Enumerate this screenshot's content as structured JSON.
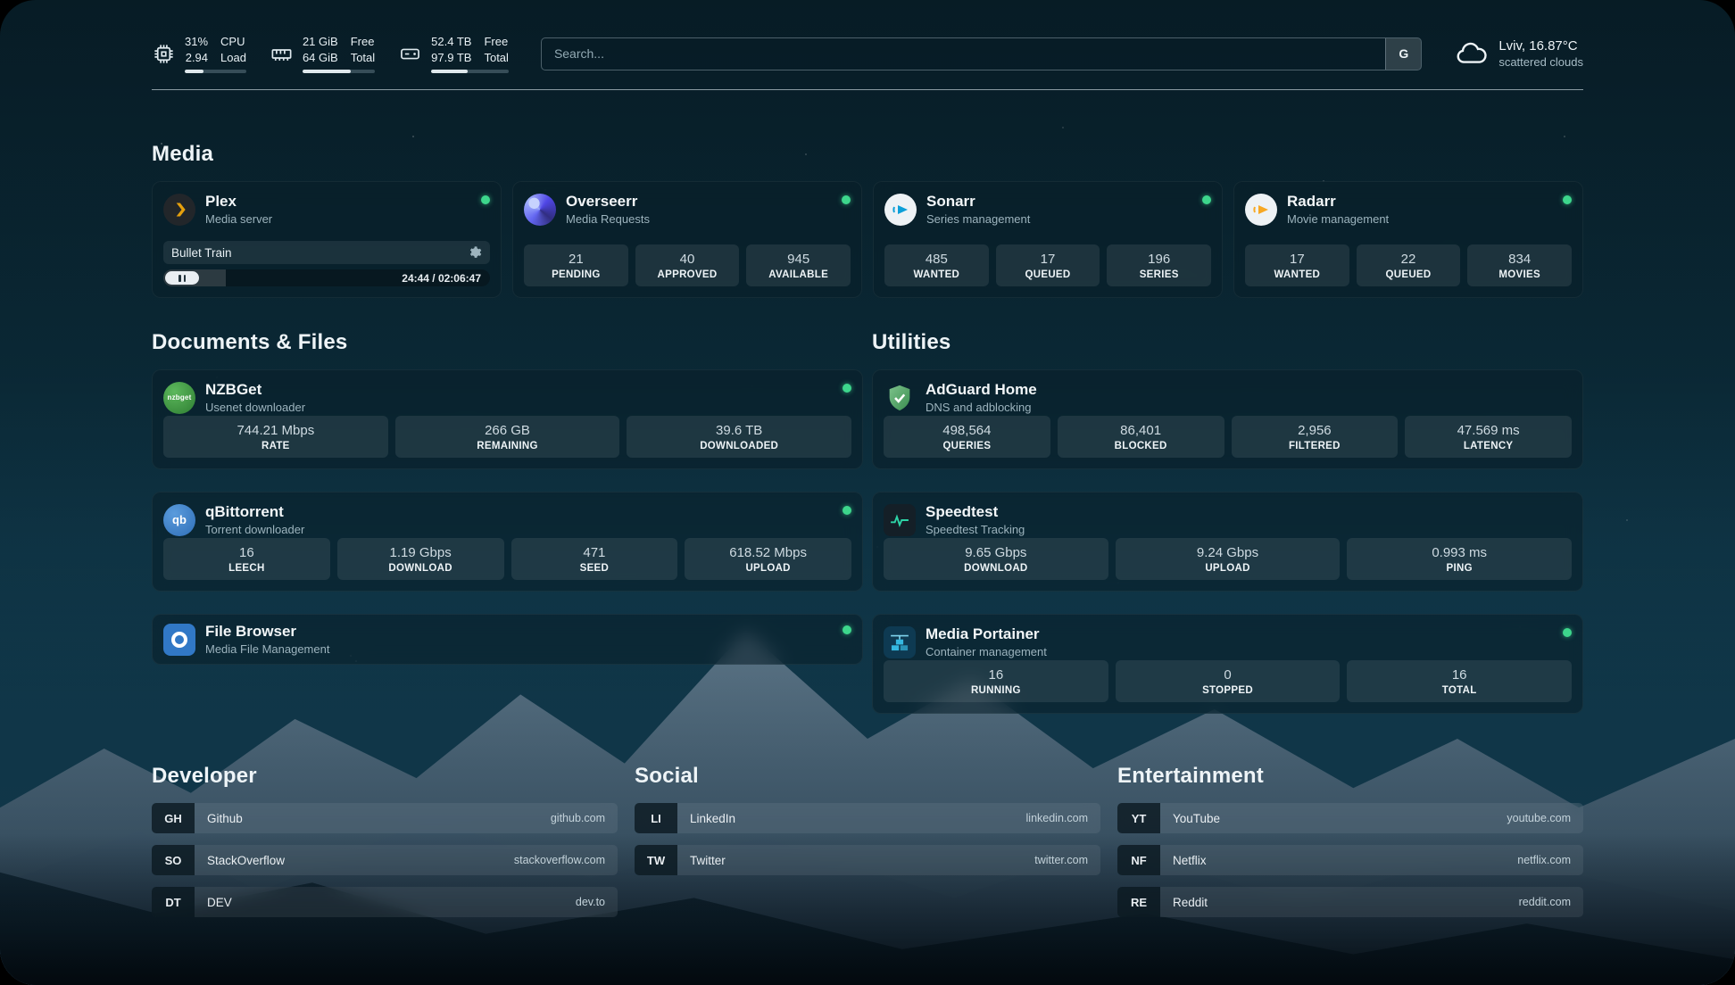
{
  "header": {
    "cpu": {
      "stat1": "31%",
      "stat2": "2.94",
      "label1": "CPU",
      "label2": "Load",
      "percent": 31
    },
    "memory": {
      "stat1": "21 GiB",
      "stat2": "64 GiB",
      "label1": "Free",
      "label2": "Total",
      "percent": 67
    },
    "disk": {
      "stat1": "52.4 TB",
      "stat2": "97.9 TB",
      "label1": "Free",
      "label2": "Total",
      "percent": 47
    },
    "search": {
      "placeholder": "Search...",
      "engine_button": "G"
    },
    "weather": {
      "location": "Lviv, 16.87°C",
      "condition": "scattered clouds"
    }
  },
  "sections": {
    "media": "Media",
    "documents": "Documents & Files",
    "utilities": "Utilities",
    "developer": "Developer",
    "social": "Social",
    "entertainment": "Entertainment"
  },
  "services": {
    "plex": {
      "name": "Plex",
      "description": "Media server",
      "now_playing": "Bullet Train",
      "time": "24:44 / 02:06:47",
      "progress_percent": 19
    },
    "overseerr": {
      "name": "Overseerr",
      "description": "Media Requests",
      "stats": [
        {
          "value": "21",
          "label": "PENDING"
        },
        {
          "value": "40",
          "label": "APPROVED"
        },
        {
          "value": "945",
          "label": "AVAILABLE"
        }
      ]
    },
    "sonarr": {
      "name": "Sonarr",
      "description": "Series management",
      "stats": [
        {
          "value": "485",
          "label": "WANTED"
        },
        {
          "value": "17",
          "label": "QUEUED"
        },
        {
          "value": "196",
          "label": "SERIES"
        }
      ]
    },
    "radarr": {
      "name": "Radarr",
      "description": "Movie management",
      "stats": [
        {
          "value": "17",
          "label": "WANTED"
        },
        {
          "value": "22",
          "label": "QUEUED"
        },
        {
          "value": "834",
          "label": "MOVIES"
        }
      ]
    },
    "nzbget": {
      "name": "NZBGet",
      "description": "Usenet downloader",
      "icon_text": "nzbget",
      "stats": [
        {
          "value": "744.21 Mbps",
          "label": "RATE"
        },
        {
          "value": "266 GB",
          "label": "REMAINING"
        },
        {
          "value": "39.6 TB",
          "label": "DOWNLOADED"
        }
      ]
    },
    "qbittorrent": {
      "name": "qBittorrent",
      "description": "Torrent downloader",
      "icon_text": "qb",
      "stats": [
        {
          "value": "16",
          "label": "LEECH"
        },
        {
          "value": "1.19 Gbps",
          "label": "DOWNLOAD"
        },
        {
          "value": "471",
          "label": "SEED"
        },
        {
          "value": "618.52 Mbps",
          "label": "UPLOAD"
        }
      ]
    },
    "filebrowser": {
      "name": "File Browser",
      "description": "Media File Management"
    },
    "adguard": {
      "name": "AdGuard Home",
      "description": "DNS and adblocking",
      "stats": [
        {
          "value": "498,564",
          "label": "QUERIES"
        },
        {
          "value": "86,401",
          "label": "BLOCKED"
        },
        {
          "value": "2,956",
          "label": "FILTERED"
        },
        {
          "value": "47.569 ms",
          "label": "LATENCY"
        }
      ]
    },
    "speedtest": {
      "name": "Speedtest",
      "description": "Speedtest Tracking",
      "stats": [
        {
          "value": "9.65 Gbps",
          "label": "DOWNLOAD"
        },
        {
          "value": "9.24 Gbps",
          "label": "UPLOAD"
        },
        {
          "value": "0.993 ms",
          "label": "PING"
        }
      ]
    },
    "portainer": {
      "name": "Media Portainer",
      "description": "Container management",
      "stats": [
        {
          "value": "16",
          "label": "RUNNING"
        },
        {
          "value": "0",
          "label": "STOPPED"
        },
        {
          "value": "16",
          "label": "TOTAL"
        }
      ]
    }
  },
  "bookmarks": {
    "developer": [
      {
        "abbr": "GH",
        "name": "Github",
        "url": "github.com"
      },
      {
        "abbr": "SO",
        "name": "StackOverflow",
        "url": "stackoverflow.com"
      },
      {
        "abbr": "DT",
        "name": "DEV",
        "url": "dev.to"
      }
    ],
    "social": [
      {
        "abbr": "LI",
        "name": "LinkedIn",
        "url": "linkedin.com"
      },
      {
        "abbr": "TW",
        "name": "Twitter",
        "url": "twitter.com"
      }
    ],
    "entertainment": [
      {
        "abbr": "YT",
        "name": "YouTube",
        "url": "youtube.com"
      },
      {
        "abbr": "NF",
        "name": "Netflix",
        "url": "netflix.com"
      },
      {
        "abbr": "RE",
        "name": "Reddit",
        "url": "reddit.com"
      }
    ]
  },
  "colors": {
    "status_online": "#3dd68c",
    "plex_accent": "#e5a00d",
    "sonarr_accent": "#0c9fd8",
    "radarr_accent": "#f7a823",
    "nzbget_accent": "#2e7d32",
    "qbittorrent_accent": "#2f6fb8",
    "filebrowser_accent": "#3178c6",
    "adguard_accent": "#67b279",
    "speedtest_accent": "#2dd4a7",
    "portainer_accent": "#35b8e0"
  }
}
